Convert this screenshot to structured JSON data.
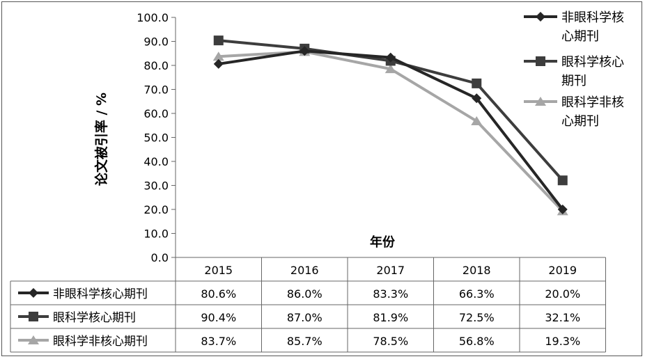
{
  "chart_data": {
    "type": "line",
    "xlabel": "年份",
    "ylabel": "论文被引率 / %",
    "ylim": [
      0,
      100
    ],
    "ytick_step": 10,
    "categories": [
      "2015",
      "2016",
      "2017",
      "2018",
      "2019"
    ],
    "legend_position": "right",
    "series": [
      {
        "name": "非眼科学核心期刊",
        "legend_lines": [
          "非眼科学核",
          "心期刊"
        ],
        "marker": "diamond",
        "color": "#262626",
        "values": [
          80.6,
          86.0,
          83.3,
          66.3,
          20.0
        ],
        "labels": [
          "80.6%",
          "86.0%",
          "83.3%",
          "66.3%",
          "20.0%"
        ]
      },
      {
        "name": "眼科学核心期刊",
        "legend_lines": [
          "眼科学核心",
          "期刊"
        ],
        "marker": "square",
        "color": "#3d3d3d",
        "values": [
          90.4,
          87.0,
          81.9,
          72.5,
          32.1
        ],
        "labels": [
          "90.4%",
          "87.0%",
          "81.9%",
          "72.5%",
          "32.1%"
        ]
      },
      {
        "name": "眼科学非核心期刊",
        "legend_lines": [
          "眼科学非核",
          "心期刊"
        ],
        "marker": "triangle",
        "color": "#a6a6a6",
        "values": [
          83.7,
          85.7,
          78.5,
          56.8,
          19.3
        ],
        "labels": [
          "83.7%",
          "85.7%",
          "78.5%",
          "56.8%",
          "19.3%"
        ]
      }
    ],
    "grid": false,
    "has_data_table": true
  }
}
